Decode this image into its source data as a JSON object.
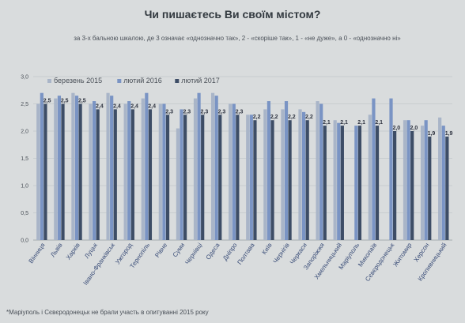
{
  "chart_data": {
    "type": "bar",
    "title": "Чи пишаєтесь Ви своїм містом?",
    "subtitle": "за 3-х бальною шкалою, де 3 означає «однозначно так», 2 - «скоріше так», 1 - «не дуже», а 0 - «однозначно ні»",
    "footnote": "*Маріуполь і Сєвєродонецьк не брали участь в опитуванні 2015 року",
    "ylim": [
      0,
      3
    ],
    "yticks": [
      "0,0",
      "0,5",
      "1,0",
      "1,5",
      "2,0",
      "2,5",
      "3,0"
    ],
    "legend_position": "top-left",
    "grid": true,
    "categories": [
      "Вінниця",
      "Львів",
      "Харків",
      "Луцьк",
      "Івано-Франківськ",
      "Ужгород",
      "Тернопіль",
      "Рівне",
      "Суми",
      "Чернівці",
      "Одеса",
      "Дніпро",
      "Полтава",
      "Київ",
      "Чернігів",
      "Черкаси",
      "Запоріжжя",
      "Хмельницький",
      "Маріуполь",
      "Миколаїв",
      "Сєвєродонецьк",
      "Житомир",
      "Херсон",
      "Кропивницький"
    ],
    "series": [
      {
        "name": "березень 2015",
        "color": "#a9b5c8",
        "values": [
          2.5,
          2.6,
          2.7,
          2.5,
          2.7,
          2.5,
          2.6,
          2.5,
          2.05,
          2.6,
          2.7,
          2.5,
          2.3,
          2.4,
          2.4,
          2.4,
          2.55,
          2.2,
          null,
          2.3,
          null,
          2.2,
          2.1,
          2.25
        ]
      },
      {
        "name": "лютий 2016",
        "color": "#7a94c4",
        "values": [
          2.7,
          2.65,
          2.65,
          2.55,
          2.65,
          2.55,
          2.7,
          2.5,
          2.4,
          2.7,
          2.65,
          2.5,
          2.3,
          2.55,
          2.55,
          2.35,
          2.5,
          2.15,
          2.1,
          2.6,
          2.6,
          2.2,
          2.2,
          2.1
        ]
      },
      {
        "name": "лютий 2017",
        "color": "#3d4d66",
        "values": [
          2.5,
          2.5,
          2.5,
          2.4,
          2.4,
          2.4,
          2.4,
          2.3,
          2.3,
          2.3,
          2.3,
          2.3,
          2.2,
          2.2,
          2.2,
          2.2,
          2.1,
          2.1,
          2.1,
          2.1,
          2.0,
          2.0,
          1.9,
          1.9
        ]
      }
    ],
    "data_labels": [
      "2,5",
      "2,5",
      "2,5",
      "2,4",
      "2,4",
      "2,4",
      "2,4",
      "2,3",
      "2,3",
      "2,3",
      "2,3",
      "2,3",
      "2,2",
      "2,2",
      "2,2",
      "2,2",
      "2,1",
      "2,1",
      "2,1",
      "2,1",
      "2,0",
      "2,0",
      "1,9",
      "1,9"
    ]
  }
}
